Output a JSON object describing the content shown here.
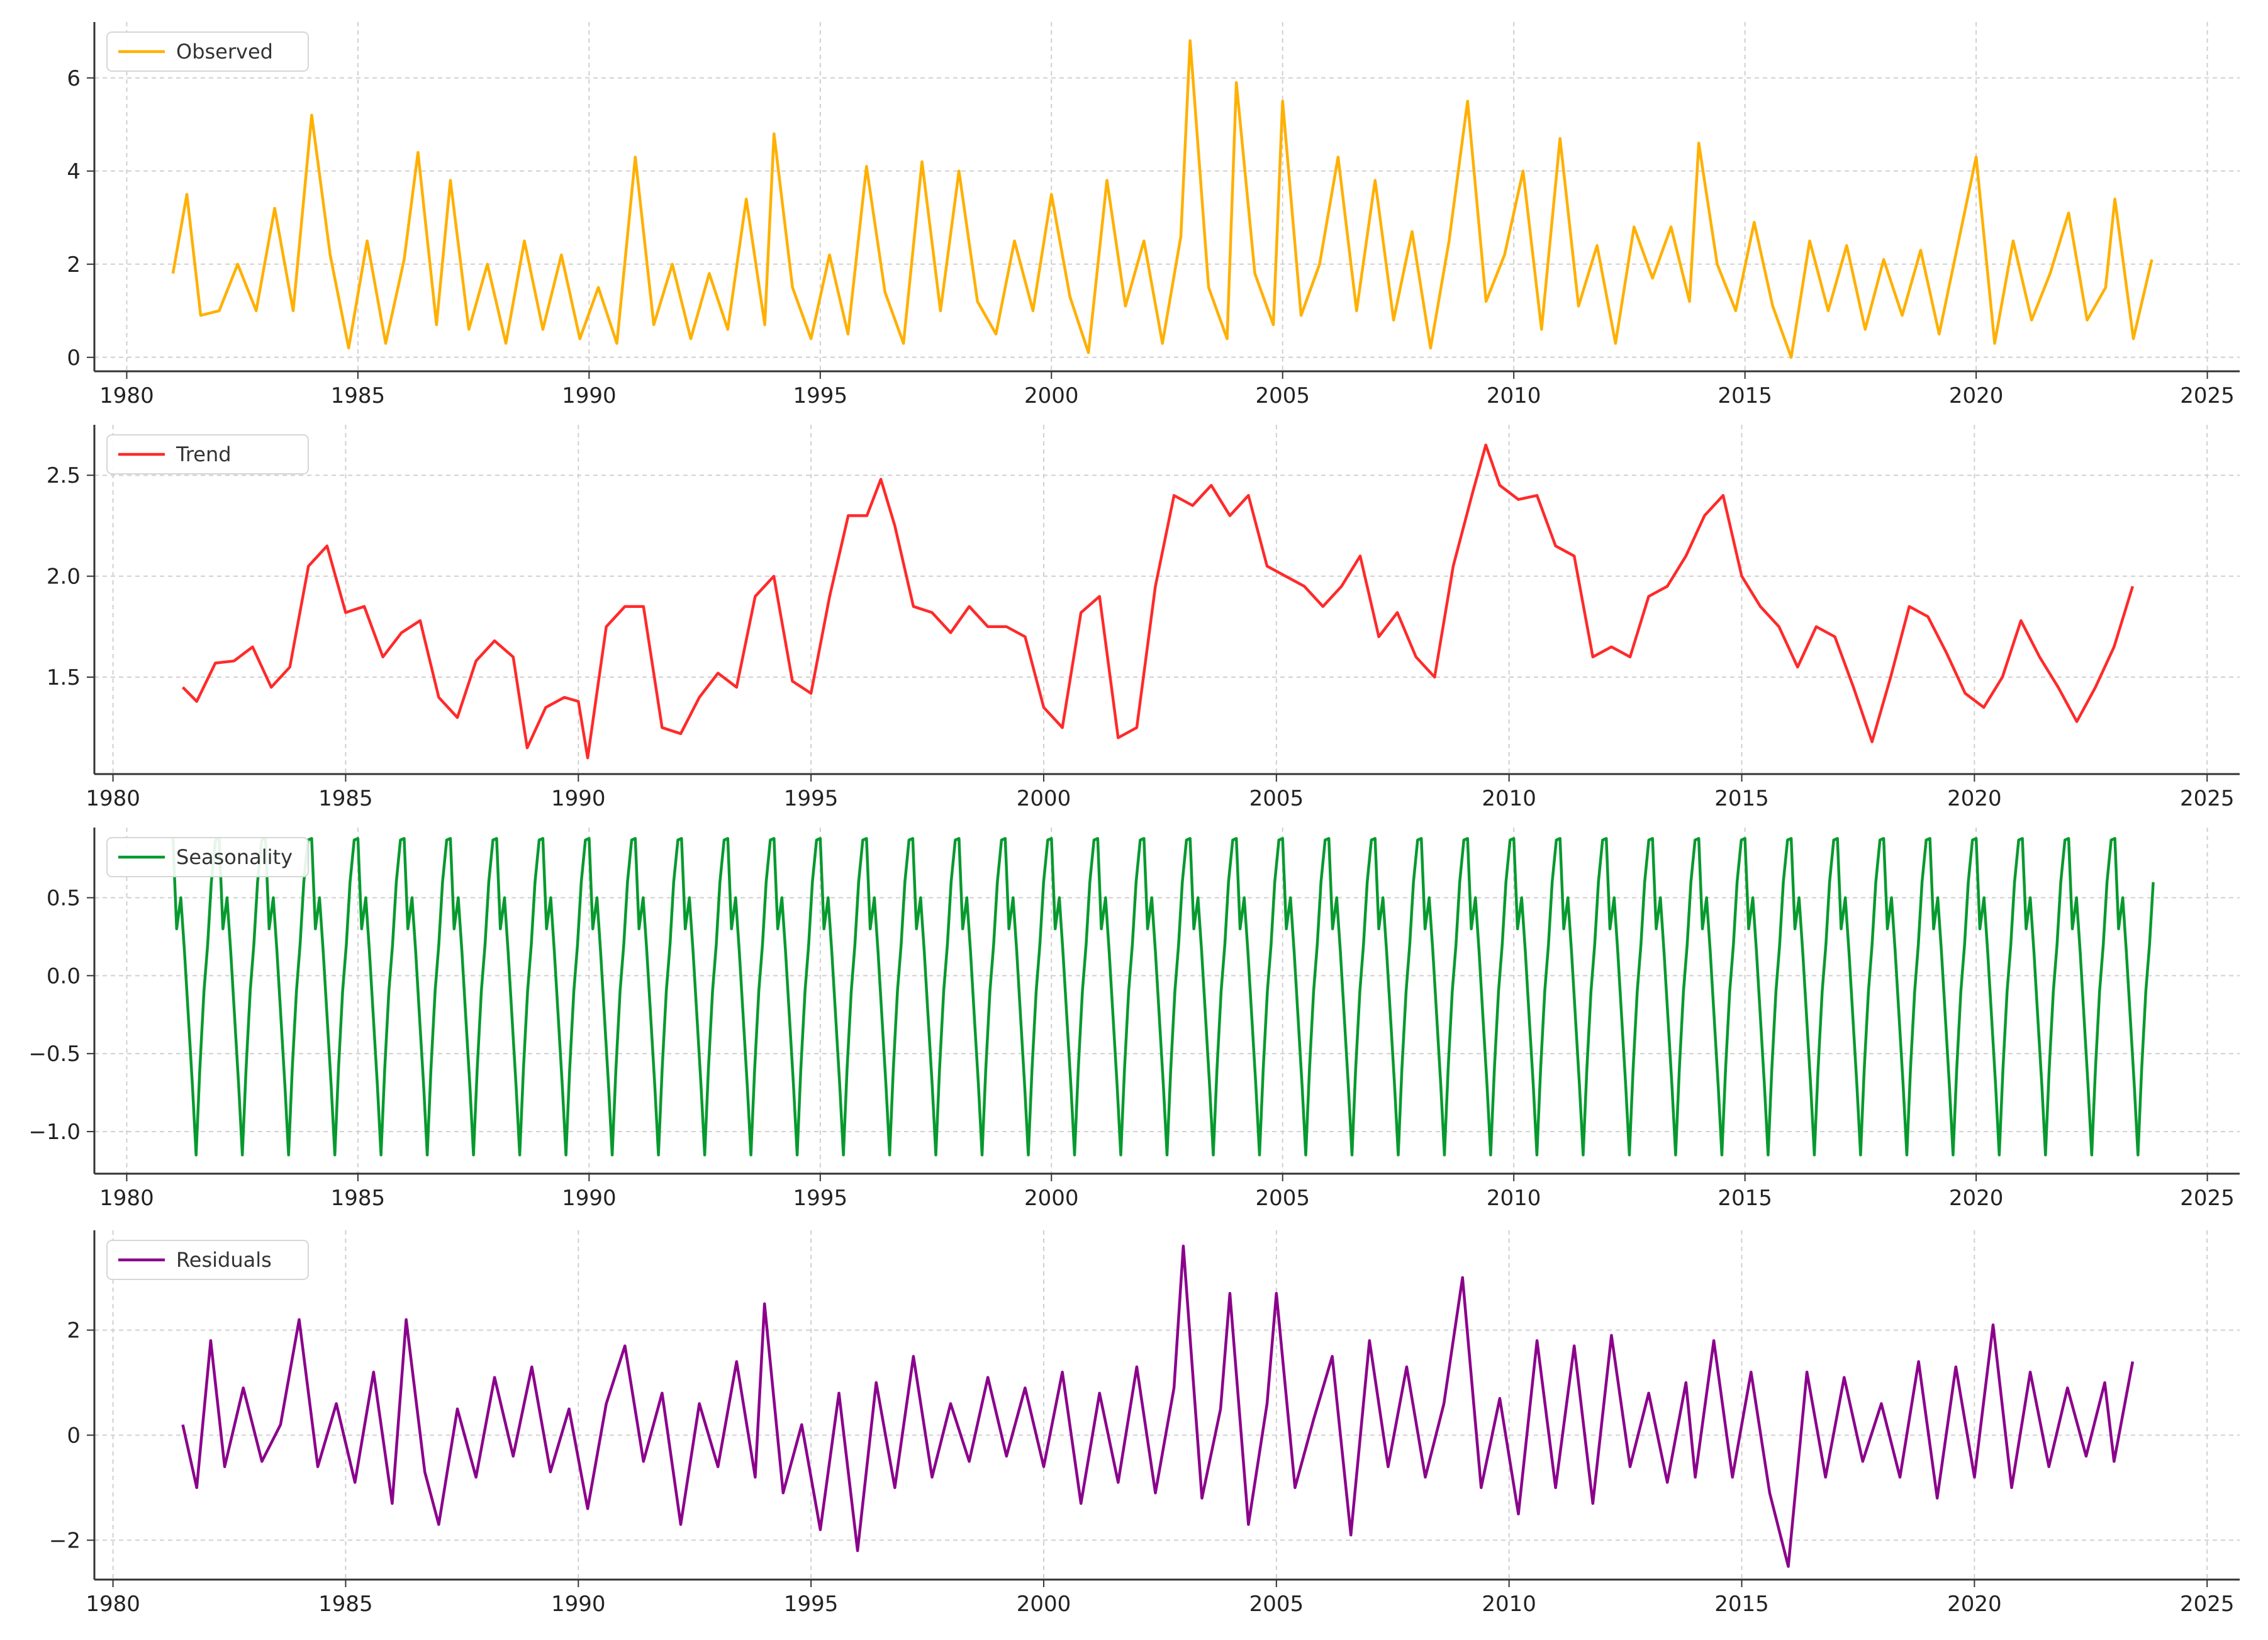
{
  "chart_data": [
    {
      "type": "line",
      "title": "",
      "xlabel": "",
      "ylabel": "",
      "xlim": [
        1979.3,
        2025.7
      ],
      "ylim": [
        -0.3,
        7.2
      ],
      "xticks": [
        1980,
        1985,
        1990,
        1995,
        2000,
        2005,
        2010,
        2015,
        2020,
        2025
      ],
      "yticks": [
        0,
        2,
        4,
        6
      ],
      "ytick_labels": [
        "0",
        "2",
        "4",
        "6"
      ],
      "grid": true,
      "legend_position": "top-left",
      "series": [
        {
          "name": "Observed",
          "color": "#ffb000",
          "x": [
            1981.0,
            1981.3,
            1981.6,
            1982.0,
            1982.4,
            1982.8,
            1983.2,
            1983.6,
            1984.0,
            1984.4,
            1984.8,
            1985.2,
            1985.6,
            1986.0,
            1986.3,
            1986.7,
            1987.0,
            1987.4,
            1987.8,
            1988.2,
            1988.6,
            1989.0,
            1989.4,
            1989.8,
            1990.2,
            1990.6,
            1991.0,
            1991.4,
            1991.8,
            1992.2,
            1992.6,
            1993.0,
            1993.4,
            1993.8,
            1994.0,
            1994.4,
            1994.8,
            1995.2,
            1995.6,
            1996.0,
            1996.4,
            1996.8,
            1997.2,
            1997.6,
            1998.0,
            1998.4,
            1998.8,
            1999.2,
            1999.6,
            2000.0,
            2000.4,
            2000.8,
            2001.2,
            2001.6,
            2002.0,
            2002.4,
            2002.8,
            2003.0,
            2003.4,
            2003.8,
            2004.0,
            2004.4,
            2004.8,
            2005.0,
            2005.4,
            2005.8,
            2006.2,
            2006.6,
            2007.0,
            2007.4,
            2007.8,
            2008.2,
            2008.6,
            2009.0,
            2009.4,
            2009.8,
            2010.2,
            2010.6,
            2011.0,
            2011.4,
            2011.8,
            2012.2,
            2012.6,
            2013.0,
            2013.4,
            2013.8,
            2014.0,
            2014.4,
            2014.8,
            2015.2,
            2015.6,
            2016.0,
            2016.4,
            2016.8,
            2017.2,
            2017.6,
            2018.0,
            2018.4,
            2018.8,
            2019.2,
            2019.6,
            2020.0,
            2020.4,
            2020.8,
            2021.2,
            2021.6,
            2022.0,
            2022.4,
            2022.8,
            2023.0,
            2023.4,
            2023.8
          ],
          "y": [
            1.8,
            3.5,
            0.9,
            1.0,
            2.0,
            1.0,
            3.2,
            1.0,
            5.2,
            2.2,
            0.2,
            2.5,
            0.3,
            2.1,
            4.4,
            0.7,
            3.8,
            0.6,
            2.0,
            0.3,
            2.5,
            0.6,
            2.2,
            0.4,
            1.5,
            0.3,
            4.3,
            0.7,
            2.0,
            0.4,
            1.8,
            0.6,
            3.4,
            0.7,
            4.8,
            1.5,
            0.4,
            2.2,
            0.5,
            4.1,
            1.4,
            0.3,
            4.2,
            1.0,
            4.0,
            1.2,
            0.5,
            2.5,
            1.0,
            3.5,
            1.3,
            0.1,
            3.8,
            1.1,
            2.5,
            0.3,
            2.6,
            6.8,
            1.5,
            0.4,
            5.9,
            1.8,
            0.7,
            5.5,
            0.9,
            2.0,
            4.3,
            1.0,
            3.8,
            0.8,
            2.7,
            0.2,
            2.5,
            5.5,
            1.2,
            2.2,
            4.0,
            0.6,
            4.7,
            1.1,
            2.4,
            0.3,
            2.8,
            1.7,
            2.8,
            1.2,
            4.6,
            2.0,
            1.0,
            2.9,
            1.1,
            0.0,
            2.5,
            1.0,
            2.4,
            0.6,
            2.1,
            0.9,
            2.3,
            0.5,
            2.4,
            4.3,
            0.3,
            2.5,
            0.8,
            1.8,
            3.1,
            0.8,
            1.5,
            3.4,
            0.4,
            2.1
          ]
        }
      ]
    },
    {
      "type": "line",
      "title": "",
      "xlabel": "",
      "ylabel": "",
      "xlim": [
        1979.6,
        2025.7
      ],
      "ylim": [
        1.02,
        2.75
      ],
      "xticks": [
        1980,
        1985,
        1990,
        1995,
        2000,
        2005,
        2010,
        2015,
        2020,
        2025
      ],
      "yticks": [
        1.5,
        2.0,
        2.5
      ],
      "ytick_labels": [
        "1.5",
        "2.0",
        "2.5"
      ],
      "grid": true,
      "legend_position": "top-left",
      "series": [
        {
          "name": "Trend",
          "color": "#ff2a2a",
          "x": [
            1981.5,
            1981.8,
            1982.2,
            1982.6,
            1983.0,
            1983.4,
            1983.8,
            1984.2,
            1984.6,
            1985.0,
            1985.4,
            1985.8,
            1986.2,
            1986.6,
            1987.0,
            1987.4,
            1987.8,
            1988.2,
            1988.6,
            1988.9,
            1989.3,
            1989.7,
            1990.0,
            1990.2,
            1990.6,
            1991.0,
            1991.4,
            1991.8,
            1992.2,
            1992.6,
            1993.0,
            1993.4,
            1993.8,
            1994.2,
            1994.6,
            1995.0,
            1995.4,
            1995.8,
            1996.2,
            1996.5,
            1996.8,
            1997.2,
            1997.6,
            1998.0,
            1998.4,
            1998.8,
            1999.2,
            1999.6,
            2000.0,
            2000.4,
            2000.8,
            2001.2,
            2001.6,
            2002.0,
            2002.4,
            2002.8,
            2003.2,
            2003.6,
            2004.0,
            2004.4,
            2004.8,
            2005.2,
            2005.6,
            2006.0,
            2006.4,
            2006.8,
            2007.2,
            2007.6,
            2008.0,
            2008.4,
            2008.8,
            2009.2,
            2009.5,
            2009.8,
            2010.2,
            2010.6,
            2011.0,
            2011.4,
            2011.8,
            2012.2,
            2012.6,
            2013.0,
            2013.4,
            2013.8,
            2014.2,
            2014.6,
            2015.0,
            2015.4,
            2015.8,
            2016.2,
            2016.6,
            2017.0,
            2017.4,
            2017.8,
            2018.2,
            2018.6,
            2019.0,
            2019.4,
            2019.8,
            2020.2,
            2020.6,
            2021.0,
            2021.4,
            2021.8,
            2022.2,
            2022.6,
            2023.0,
            2023.4
          ],
          "y": [
            1.45,
            1.38,
            1.57,
            1.58,
            1.65,
            1.45,
            1.55,
            2.05,
            2.15,
            1.82,
            1.85,
            1.6,
            1.72,
            1.78,
            1.4,
            1.3,
            1.58,
            1.68,
            1.6,
            1.15,
            1.35,
            1.4,
            1.38,
            1.1,
            1.75,
            1.85,
            1.85,
            1.25,
            1.22,
            1.4,
            1.52,
            1.45,
            1.9,
            2.0,
            1.48,
            1.42,
            1.9,
            2.3,
            2.3,
            2.48,
            2.25,
            1.85,
            1.82,
            1.72,
            1.85,
            1.75,
            1.75,
            1.7,
            1.35,
            1.25,
            1.82,
            1.9,
            1.2,
            1.25,
            1.95,
            2.4,
            2.35,
            2.45,
            2.3,
            2.4,
            2.05,
            2.0,
            1.95,
            1.85,
            1.95,
            2.1,
            1.7,
            1.82,
            1.6,
            1.5,
            2.05,
            2.4,
            2.65,
            2.45,
            2.38,
            2.4,
            2.15,
            2.1,
            1.6,
            1.65,
            1.6,
            1.9,
            1.95,
            2.1,
            2.3,
            2.4,
            2.0,
            1.85,
            1.75,
            1.55,
            1.75,
            1.7,
            1.45,
            1.18,
            1.5,
            1.85,
            1.8,
            1.62,
            1.42,
            1.35,
            1.5,
            1.78,
            1.6,
            1.45,
            1.28,
            1.45,
            1.65,
            1.95
          ]
        }
      ]
    },
    {
      "type": "line",
      "title": "",
      "xlabel": "",
      "ylabel": "",
      "xlim": [
        1979.3,
        2025.7
      ],
      "ylim": [
        -1.27,
        0.95
      ],
      "xticks": [
        1980,
        1985,
        1990,
        1995,
        2000,
        2005,
        2010,
        2015,
        2020,
        2025
      ],
      "yticks": [
        -1.0,
        -0.5,
        0.0,
        0.5
      ],
      "ytick_labels": [
        "−1.0",
        "−0.5",
        "0.0",
        "0.5"
      ],
      "grid": true,
      "legend_position": "top-left",
      "series": [
        {
          "name": "Seasonality",
          "color": "#079a2f",
          "period": 1.0,
          "x_start": 1981.0,
          "x_end": 2023.9,
          "x": [
            0.0,
            0.08,
            0.17,
            0.25,
            0.33,
            0.42,
            0.5,
            0.58,
            0.67,
            0.75,
            0.83,
            0.92
          ],
          "y": [
            0.88,
            0.3,
            0.5,
            0.15,
            -0.25,
            -0.7,
            -1.15,
            -0.6,
            -0.1,
            0.2,
            0.6,
            0.87
          ]
        }
      ]
    },
    {
      "type": "line",
      "title": "",
      "xlabel": "",
      "ylabel": "",
      "xlim": [
        1979.6,
        2025.7
      ],
      "ylim": [
        -2.75,
        3.9
      ],
      "xticks": [
        1980,
        1985,
        1990,
        1995,
        2000,
        2005,
        2010,
        2015,
        2020,
        2025
      ],
      "yticks": [
        -2,
        0,
        2
      ],
      "ytick_labels": [
        "−2",
        "0",
        "2"
      ],
      "grid": true,
      "legend_position": "top-left",
      "series": [
        {
          "name": "Residuals",
          "color": "#8b008b",
          "x": [
            1981.5,
            1981.8,
            1982.1,
            1982.4,
            1982.8,
            1983.2,
            1983.6,
            1984.0,
            1984.4,
            1984.8,
            1985.2,
            1985.6,
            1986.0,
            1986.3,
            1986.7,
            1987.0,
            1987.4,
            1987.8,
            1988.2,
            1988.6,
            1989.0,
            1989.4,
            1989.8,
            1990.2,
            1990.6,
            1991.0,
            1991.4,
            1991.8,
            1992.2,
            1992.6,
            1993.0,
            1993.4,
            1993.8,
            1994.0,
            1994.4,
            1994.8,
            1995.2,
            1995.6,
            1996.0,
            1996.4,
            1996.8,
            1997.2,
            1997.6,
            1998.0,
            1998.4,
            1998.8,
            1999.2,
            1999.6,
            2000.0,
            2000.4,
            2000.8,
            2001.2,
            2001.6,
            2002.0,
            2002.4,
            2002.8,
            2003.0,
            2003.4,
            2003.8,
            2004.0,
            2004.4,
            2004.8,
            2005.0,
            2005.4,
            2005.8,
            2006.2,
            2006.6,
            2007.0,
            2007.4,
            2007.8,
            2008.2,
            2008.6,
            2009.0,
            2009.4,
            2009.8,
            2010.2,
            2010.6,
            2011.0,
            2011.4,
            2011.8,
            2012.2,
            2012.6,
            2013.0,
            2013.4,
            2013.8,
            2014.0,
            2014.4,
            2014.8,
            2015.2,
            2015.6,
            2016.0,
            2016.4,
            2016.8,
            2017.2,
            2017.6,
            2018.0,
            2018.4,
            2018.8,
            2019.2,
            2019.6,
            2020.0,
            2020.4,
            2020.8,
            2021.2,
            2021.6,
            2022.0,
            2022.4,
            2022.8,
            2023.0,
            2023.4
          ],
          "y": [
            0.2,
            -1.0,
            1.8,
            -0.6,
            0.9,
            -0.5,
            0.2,
            2.2,
            -0.6,
            0.6,
            -0.9,
            1.2,
            -1.3,
            2.2,
            -0.7,
            -1.7,
            0.5,
            -0.8,
            1.1,
            -0.4,
            1.3,
            -0.7,
            0.5,
            -1.4,
            0.6,
            1.7,
            -0.5,
            0.8,
            -1.7,
            0.6,
            -0.6,
            1.4,
            -0.8,
            2.5,
            -1.1,
            0.2,
            -1.8,
            0.8,
            -2.2,
            1.0,
            -1.0,
            1.5,
            -0.8,
            0.6,
            -0.5,
            1.1,
            -0.4,
            0.9,
            -0.6,
            1.2,
            -1.3,
            0.8,
            -0.9,
            1.3,
            -1.1,
            0.9,
            3.6,
            -1.2,
            0.5,
            2.7,
            -1.7,
            0.6,
            2.7,
            -1.0,
            0.3,
            1.5,
            -1.9,
            1.8,
            -0.6,
            1.3,
            -0.8,
            0.6,
            3.0,
            -1.0,
            0.7,
            -1.5,
            1.8,
            -1.0,
            1.7,
            -1.3,
            1.9,
            -0.6,
            0.8,
            -0.9,
            1.0,
            -0.8,
            1.8,
            -0.8,
            1.2,
            -1.1,
            -2.5,
            1.2,
            -0.8,
            1.1,
            -0.5,
            0.6,
            -0.8,
            1.4,
            -1.2,
            1.3,
            -0.8,
            2.1,
            -1.0,
            1.2,
            -0.6,
            0.9,
            -0.4,
            1.0,
            -0.5,
            1.4
          ]
        }
      ]
    }
  ]
}
